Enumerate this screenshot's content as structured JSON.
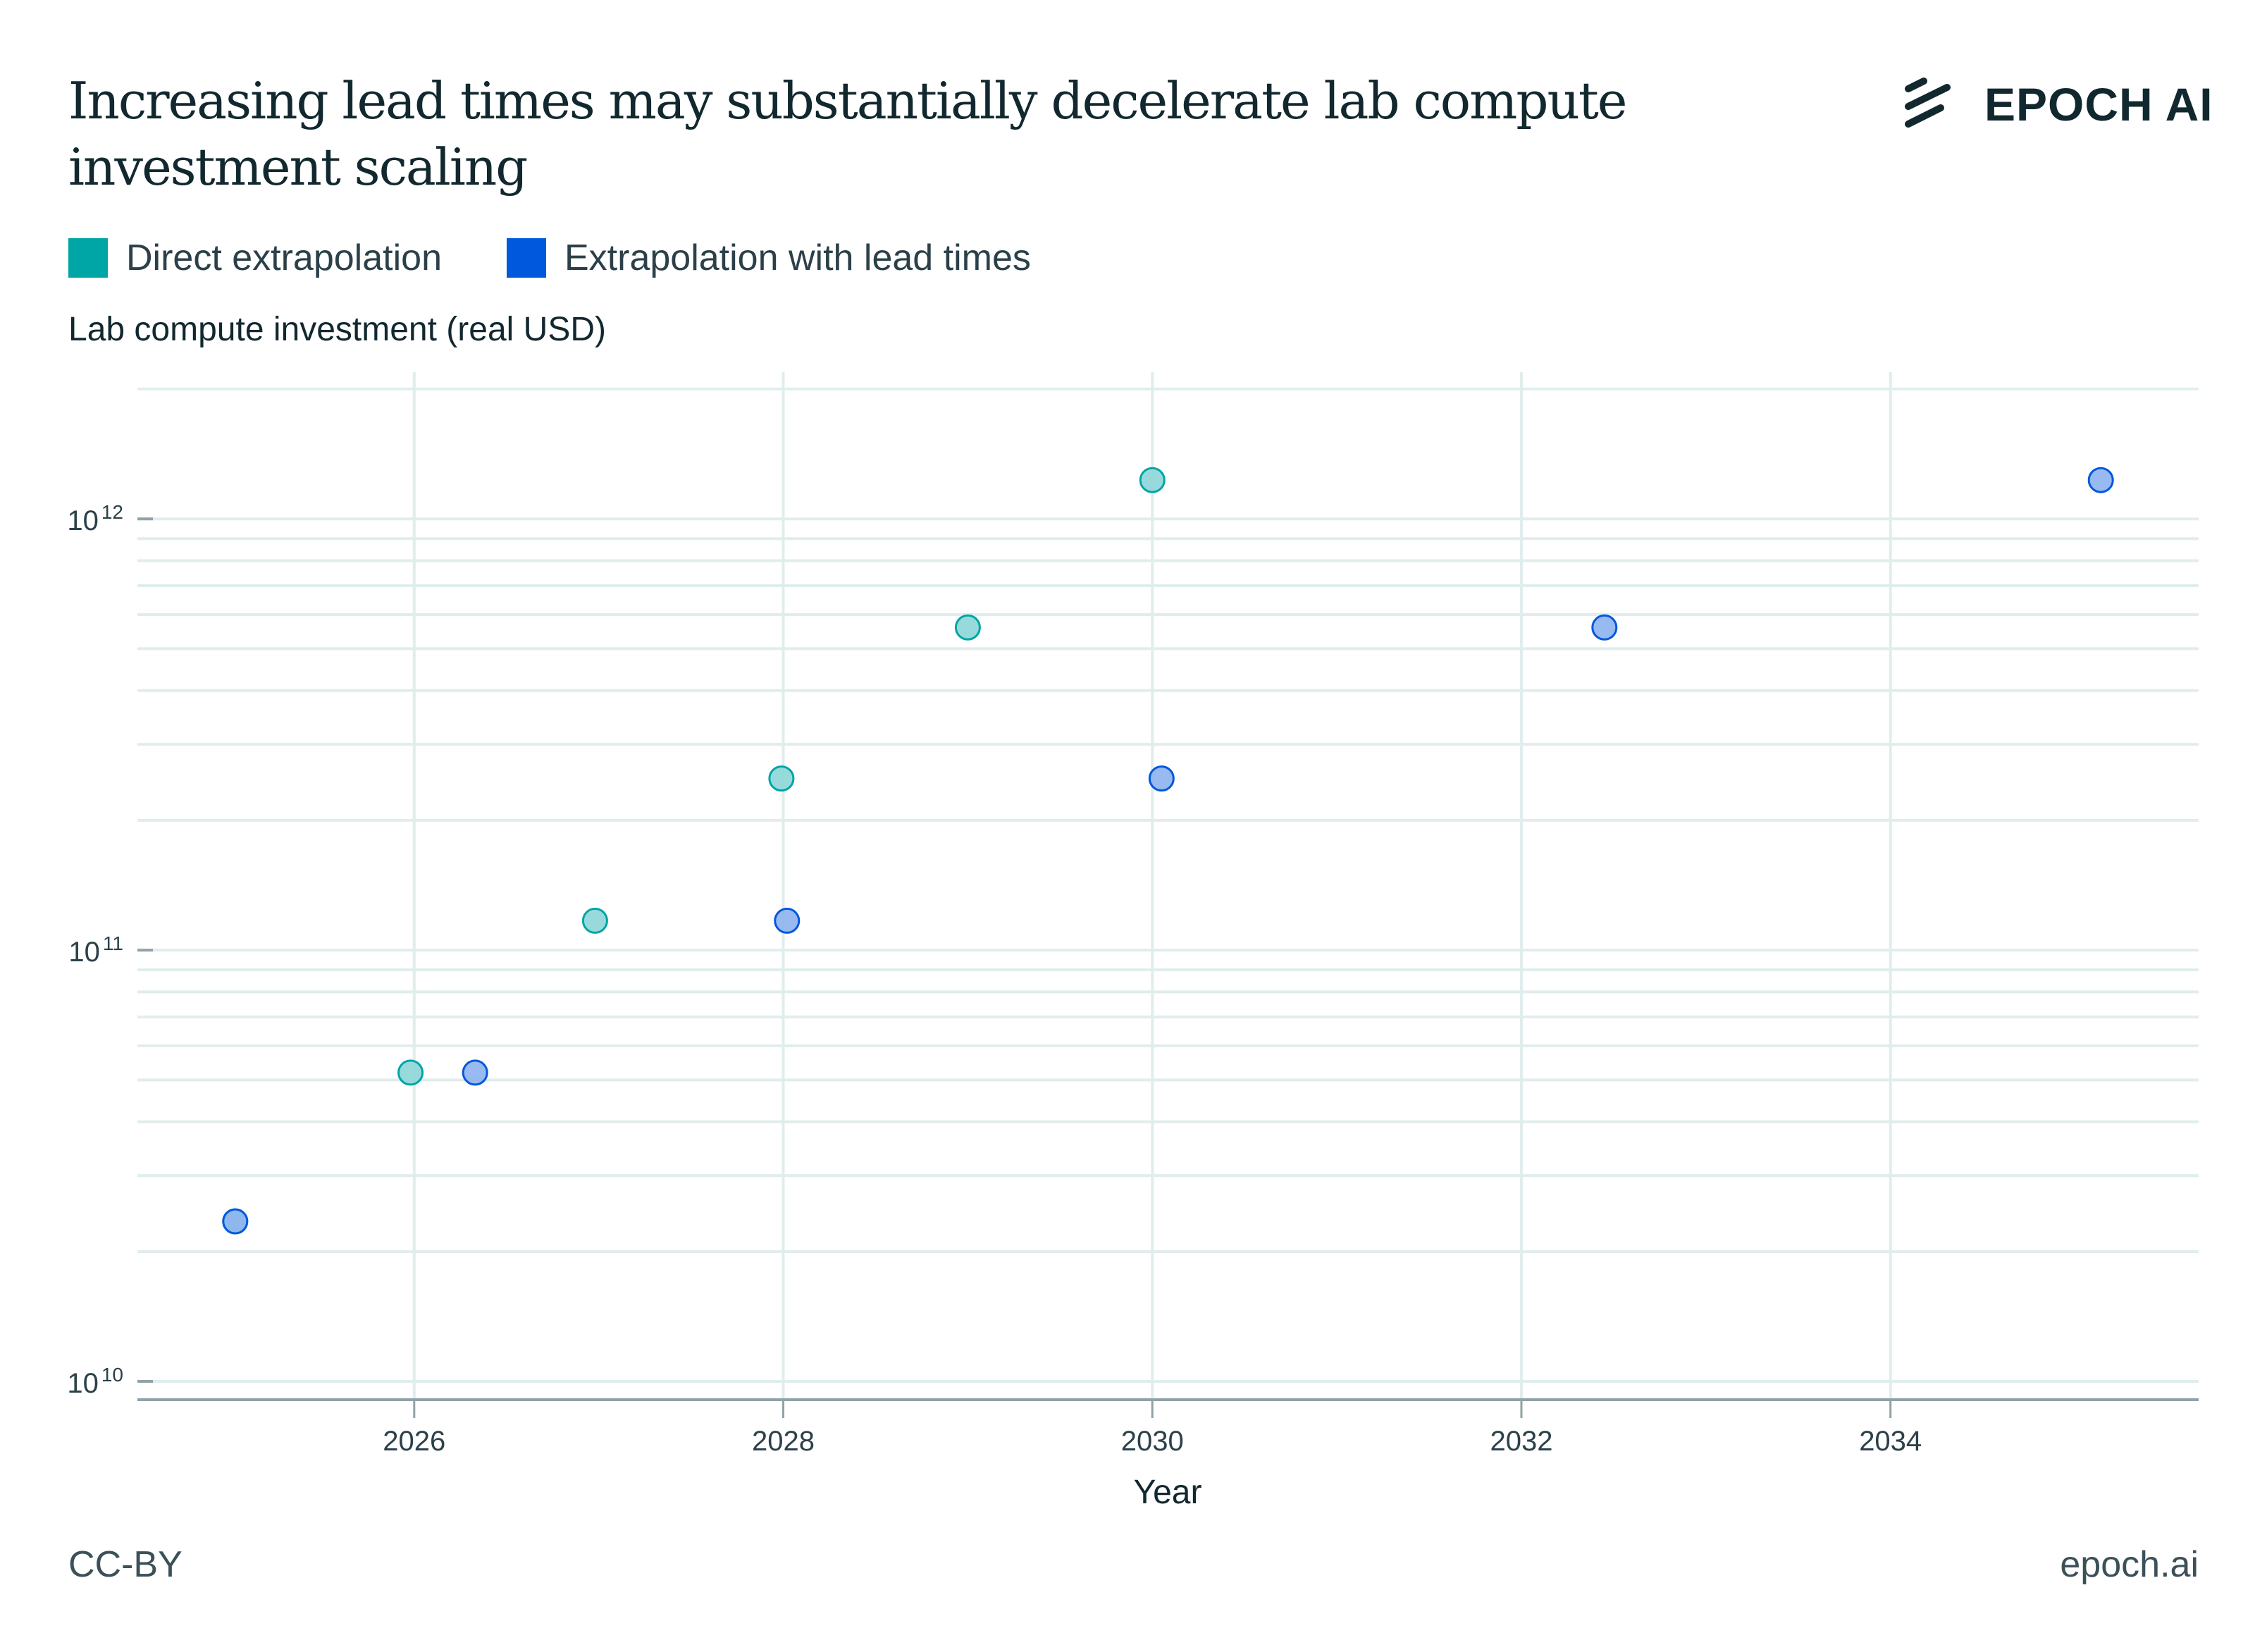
{
  "header": {
    "title": "Increasing lead times may substantially decelerate lab compute investment scaling",
    "logo_text": "EPOCH AI",
    "logo_icon": "epoch-stripes-icon"
  },
  "legend": [
    {
      "label": "Direct extrapolation",
      "color": "#00a5a6"
    },
    {
      "label": "Extrapolation with lead times",
      "color": "#0058dc"
    }
  ],
  "footer": {
    "license": "CC-BY",
    "site": "epoch.ai"
  },
  "chart_data": {
    "type": "scatter",
    "title": "Increasing lead times may substantially decelerate lab compute investment scaling",
    "xlabel": "Year",
    "ylabel": "Lab compute investment (real USD)",
    "xscale": "linear",
    "yscale": "log",
    "xlim": [
      2024.5,
      2035.67
    ],
    "ylim": [
      9070000000.0,
      2000000000000.0
    ],
    "grid": true,
    "legend_position": "top-left",
    "x_ticks": [
      2026,
      2028,
      2030,
      2032,
      2034
    ],
    "x_tick_labels": [
      "2026",
      "2028",
      "2030",
      "2032",
      "2034"
    ],
    "y_ticks": [
      {
        "value": 10000000000.0,
        "base": "10",
        "exp": "10"
      },
      {
        "value": 100000000000.0,
        "base": "10",
        "exp": "11"
      },
      {
        "value": 1000000000000.0,
        "base": "10",
        "exp": "12"
      }
    ],
    "series": [
      {
        "name": "Direct extrapolation",
        "color": "#00a5a6",
        "fill": "#8dd6d7",
        "points": [
          {
            "x": 2025.03,
            "y": 23500000000.0
          },
          {
            "x": 2025.98,
            "y": 52000000000.0
          },
          {
            "x": 2026.98,
            "y": 117000000000.0
          },
          {
            "x": 2027.99,
            "y": 250000000000.0
          },
          {
            "x": 2029.0,
            "y": 560000000000.0
          },
          {
            "x": 2030.0,
            "y": 1230000000000.0
          }
        ]
      },
      {
        "name": "Extrapolation with lead times",
        "color": "#0058dc",
        "fill": "#8db2ee",
        "points": [
          {
            "x": 2025.03,
            "y": 23500000000.0
          },
          {
            "x": 2026.33,
            "y": 52000000000.0
          },
          {
            "x": 2028.02,
            "y": 117000000000.0
          },
          {
            "x": 2030.05,
            "y": 250000000000.0
          },
          {
            "x": 2032.45,
            "y": 560000000000.0
          },
          {
            "x": 2035.14,
            "y": 1230000000000.0
          }
        ]
      }
    ]
  }
}
